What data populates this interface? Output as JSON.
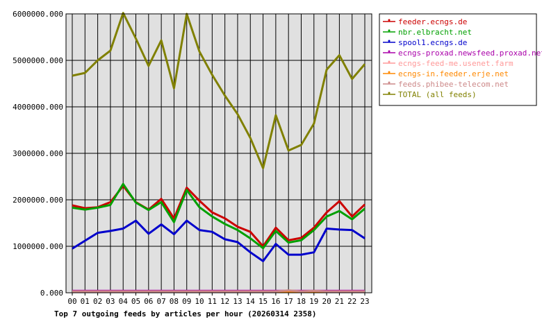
{
  "chart_data": {
    "type": "line",
    "title": "Top 7 outgoing feeds by articles per hour (20260314 2358)",
    "categories": [
      "00",
      "01",
      "02",
      "03",
      "04",
      "05",
      "06",
      "07",
      "08",
      "09",
      "10",
      "11",
      "12",
      "13",
      "14",
      "15",
      "16",
      "17",
      "18",
      "19",
      "20",
      "21",
      "22",
      "23"
    ],
    "ylim": [
      0,
      6000000
    ],
    "yticks": [
      0,
      1000000,
      2000000,
      3000000,
      4000000,
      5000000,
      6000000
    ],
    "ytick_labels": [
      "0.000",
      "1000000.000",
      "2000000.000",
      "3000000.000",
      "4000000.000",
      "5000000.000",
      "6000000.000"
    ],
    "grid": true,
    "legend_position": "top-right",
    "plot_background": "#e0e0e0",
    "series": [
      {
        "name": "feeder.ecngs.de",
        "color": "#cc0000",
        "values": [
          1880000,
          1820000,
          1840000,
          1950000,
          2300000,
          1950000,
          1790000,
          2020000,
          1600000,
          2260000,
          1980000,
          1730000,
          1600000,
          1420000,
          1310000,
          1000000,
          1400000,
          1130000,
          1180000,
          1400000,
          1730000,
          1970000,
          1640000,
          1900000
        ]
      },
      {
        "name": "nbr.elbracht.net",
        "color": "#00a000",
        "values": [
          1830000,
          1790000,
          1830000,
          1890000,
          2340000,
          1940000,
          1780000,
          1950000,
          1520000,
          2210000,
          1840000,
          1640000,
          1480000,
          1350000,
          1170000,
          960000,
          1330000,
          1080000,
          1130000,
          1350000,
          1640000,
          1760000,
          1580000,
          1810000
        ]
      },
      {
        "name": "spool1.ecngs.de",
        "color": "#0000cc",
        "values": [
          950000,
          1120000,
          1290000,
          1330000,
          1380000,
          1550000,
          1270000,
          1470000,
          1260000,
          1550000,
          1350000,
          1310000,
          1150000,
          1090000,
          870000,
          680000,
          1050000,
          820000,
          820000,
          870000,
          1380000,
          1360000,
          1350000,
          1170000
        ]
      },
      {
        "name": "ecngs-proxad.newsfeed.proxad.net",
        "color": "#aa00aa",
        "values": [
          40000,
          40000,
          40000,
          40000,
          40000,
          40000,
          40000,
          40000,
          40000,
          40000,
          40000,
          40000,
          40000,
          40000,
          40000,
          40000,
          40000,
          40000,
          40000,
          40000,
          40000,
          40000,
          40000,
          40000
        ]
      },
      {
        "name": "ecngs-feed-me.usenet.farm",
        "color": "#ff9999",
        "values": [
          30000,
          30000,
          30000,
          30000,
          30000,
          30000,
          30000,
          30000,
          30000,
          30000,
          30000,
          30000,
          30000,
          30000,
          30000,
          30000,
          30000,
          30000,
          30000,
          30000,
          30000,
          30000,
          30000,
          30000
        ]
      },
      {
        "name": "ecngs-in.feeder.erje.net",
        "color": "#ff8800",
        "values": [
          20000,
          20000,
          20000,
          20000,
          20000,
          20000,
          20000,
          20000,
          20000,
          20000,
          20000,
          20000,
          20000,
          20000,
          20000,
          20000,
          20000,
          20000,
          20000,
          20000,
          20000,
          20000,
          20000,
          20000
        ]
      },
      {
        "name": "feeds.phibee-telecom.net",
        "color": "#cc8888",
        "values": [
          30000,
          30000,
          30000,
          30000,
          30000,
          30000,
          30000,
          30000,
          30000,
          30000,
          30000,
          30000,
          30000,
          30000,
          30000,
          30000,
          30000,
          50000,
          30000,
          40000,
          30000,
          30000,
          30000,
          30000
        ]
      },
      {
        "name": "TOTAL (all feeds)",
        "color": "#808000",
        "values": [
          4670000,
          4730000,
          5000000,
          5210000,
          6020000,
          5470000,
          4880000,
          5430000,
          4400000,
          6000000,
          5190000,
          4690000,
          4240000,
          3840000,
          3330000,
          2680000,
          3820000,
          3060000,
          3180000,
          3640000,
          4800000,
          5110000,
          4600000,
          4920000
        ]
      }
    ]
  }
}
